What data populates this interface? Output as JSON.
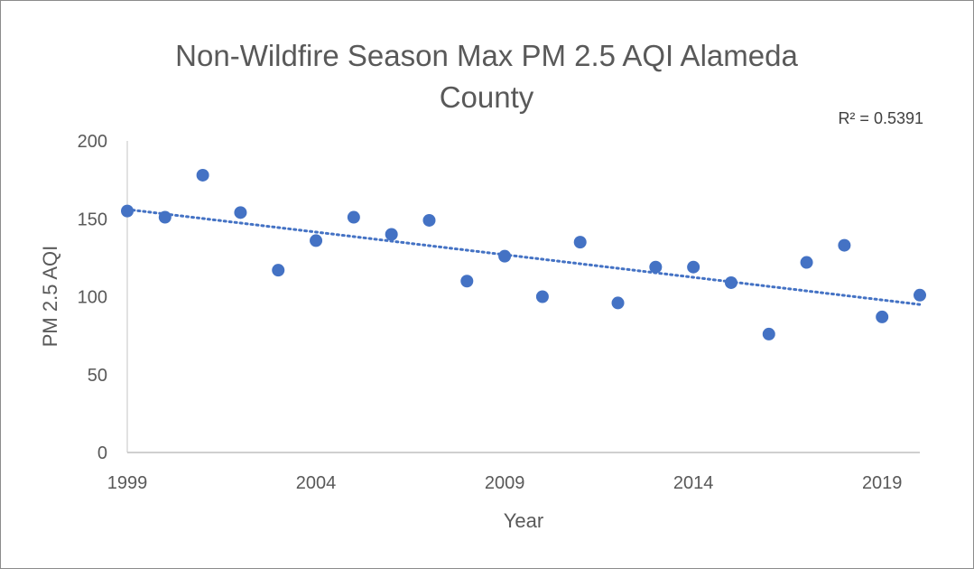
{
  "chart_data": {
    "type": "scatter",
    "title_lines": [
      "Non-Wildfire Season Max PM 2.5 AQI Alameda",
      "County"
    ],
    "xlabel": "Year",
    "ylabel": "PM 2.5 AQI",
    "xlim": [
      1999,
      2020
    ],
    "ylim": [
      0,
      200
    ],
    "x_ticks": [
      1999,
      2004,
      2009,
      2014,
      2019
    ],
    "y_ticks": [
      0,
      50,
      100,
      150,
      200
    ],
    "grid": false,
    "legend": "none",
    "marker_color": "#4472C4",
    "series": [
      {
        "x": [
          1999,
          2000,
          2001,
          2002,
          2003,
          2004,
          2005,
          2006,
          2007,
          2008,
          2009,
          2010,
          2011,
          2012,
          2013,
          2014,
          2015,
          2016,
          2017,
          2018,
          2019,
          2020
        ],
        "values": [
          155,
          151,
          178,
          154,
          117,
          136,
          151,
          140,
          149,
          110,
          126,
          100,
          135,
          96,
          119,
          119,
          109,
          76,
          122,
          133,
          87,
          101
        ]
      }
    ],
    "trendline": {
      "type": "linear",
      "x": [
        1999,
        2020
      ],
      "values": [
        156,
        95
      ],
      "style": "dotted",
      "color": "#4472C4",
      "r_squared_label": "R² = 0.5391"
    }
  }
}
